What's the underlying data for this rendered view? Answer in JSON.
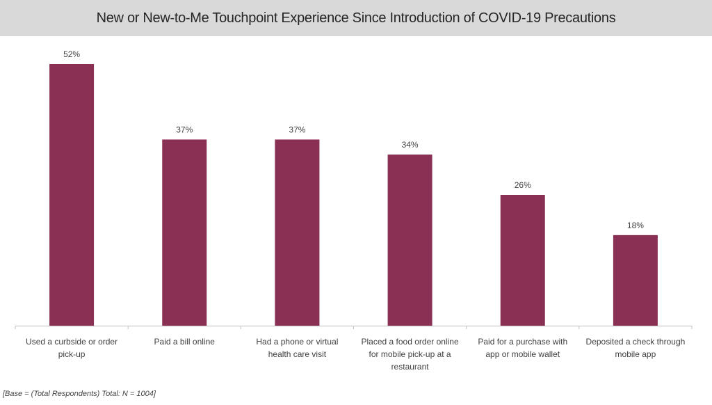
{
  "chart_data": {
    "type": "bar",
    "title": "New or New-to-Me Touchpoint Experience Since Introduction of COVID-19 Precautions",
    "xlabel": "",
    "ylabel": "",
    "ylim": [
      0,
      52
    ],
    "grid": false,
    "categories": [
      [
        "Used a curbside or order",
        "pick-up"
      ],
      [
        "Paid a bill online"
      ],
      [
        "Had a phone or virtual",
        "health care visit"
      ],
      [
        "Placed a food order online",
        "for mobile pick-up at a",
        "restaurant"
      ],
      [
        "Paid for a purchase with",
        "app or mobile wallet"
      ],
      [
        "Deposited a check through",
        "mobile app"
      ]
    ],
    "values": [
      52,
      37,
      37,
      34,
      26,
      18
    ],
    "data_labels": [
      "52%",
      "37%",
      "37%",
      "34%",
      "26%",
      "18%"
    ],
    "bar_color": "#8b3055",
    "footnote": "[Base = (Total Respondents) Total: N = 1004]"
  }
}
